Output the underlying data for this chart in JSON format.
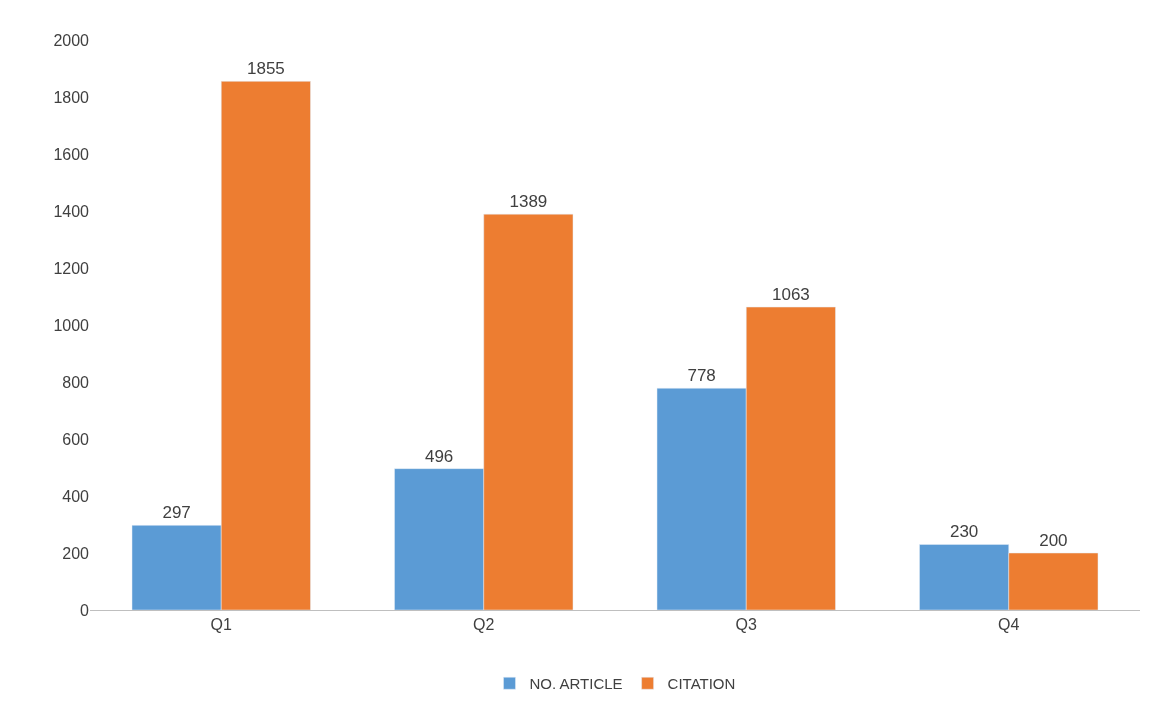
{
  "chart_data": {
    "type": "bar",
    "categories": [
      "Q1",
      "Q2",
      "Q3",
      "Q4"
    ],
    "series": [
      {
        "name": "NO. ARTICLE",
        "color": "#5b9bd5",
        "values": [
          297,
          496,
          778,
          230
        ]
      },
      {
        "name": "CITATION",
        "color": "#ed7d31",
        "values": [
          1855,
          1389,
          1063,
          200
        ]
      }
    ],
    "ylim": [
      0,
      2000
    ],
    "yticks": [
      0,
      200,
      400,
      600,
      800,
      1000,
      1200,
      1400,
      1600,
      1800,
      2000
    ],
    "grid": false,
    "legend": "bottom",
    "data_labels": true
  }
}
